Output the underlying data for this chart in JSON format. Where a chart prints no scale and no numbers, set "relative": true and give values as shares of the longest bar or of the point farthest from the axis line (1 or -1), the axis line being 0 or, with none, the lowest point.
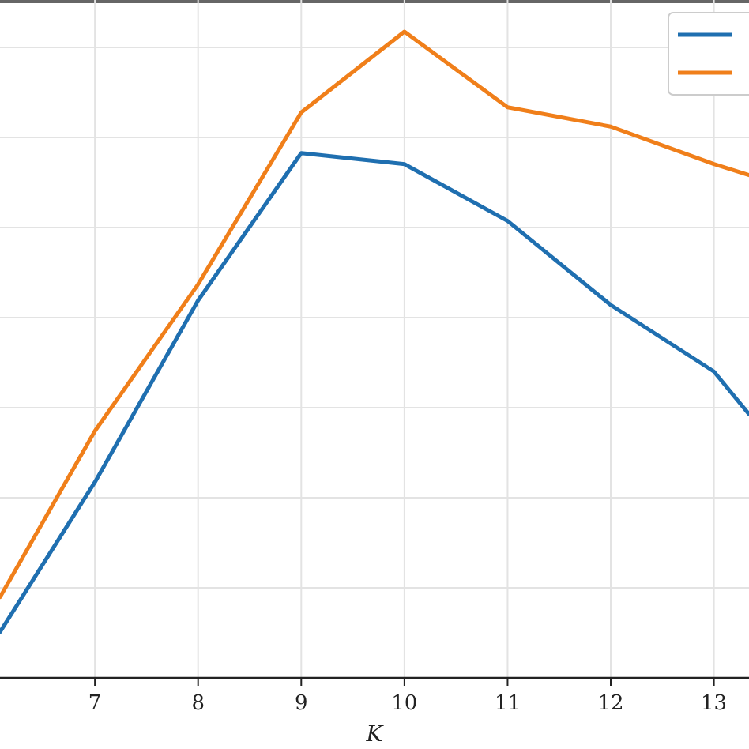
{
  "chart_data": {
    "type": "line",
    "xlabel": "K",
    "relative": true,
    "x": [
      6.08,
      7,
      8,
      9,
      10,
      11,
      12,
      13,
      13.34
    ],
    "xlim": [
      6.08,
      13.34
    ],
    "xticks": [
      7,
      8,
      9,
      10,
      11,
      12,
      13
    ],
    "grid": true,
    "series": [
      {
        "color": "#1f6fb0",
        "values": [
          0.071,
          0.303,
          0.584,
          0.812,
          0.795,
          0.707,
          0.577,
          0.474,
          0.408
        ]
      },
      {
        "color": "#f07f1a",
        "values": [
          0.125,
          0.382,
          0.609,
          0.875,
          1,
          0.883,
          0.853,
          0.795,
          0.778
        ]
      }
    ]
  }
}
